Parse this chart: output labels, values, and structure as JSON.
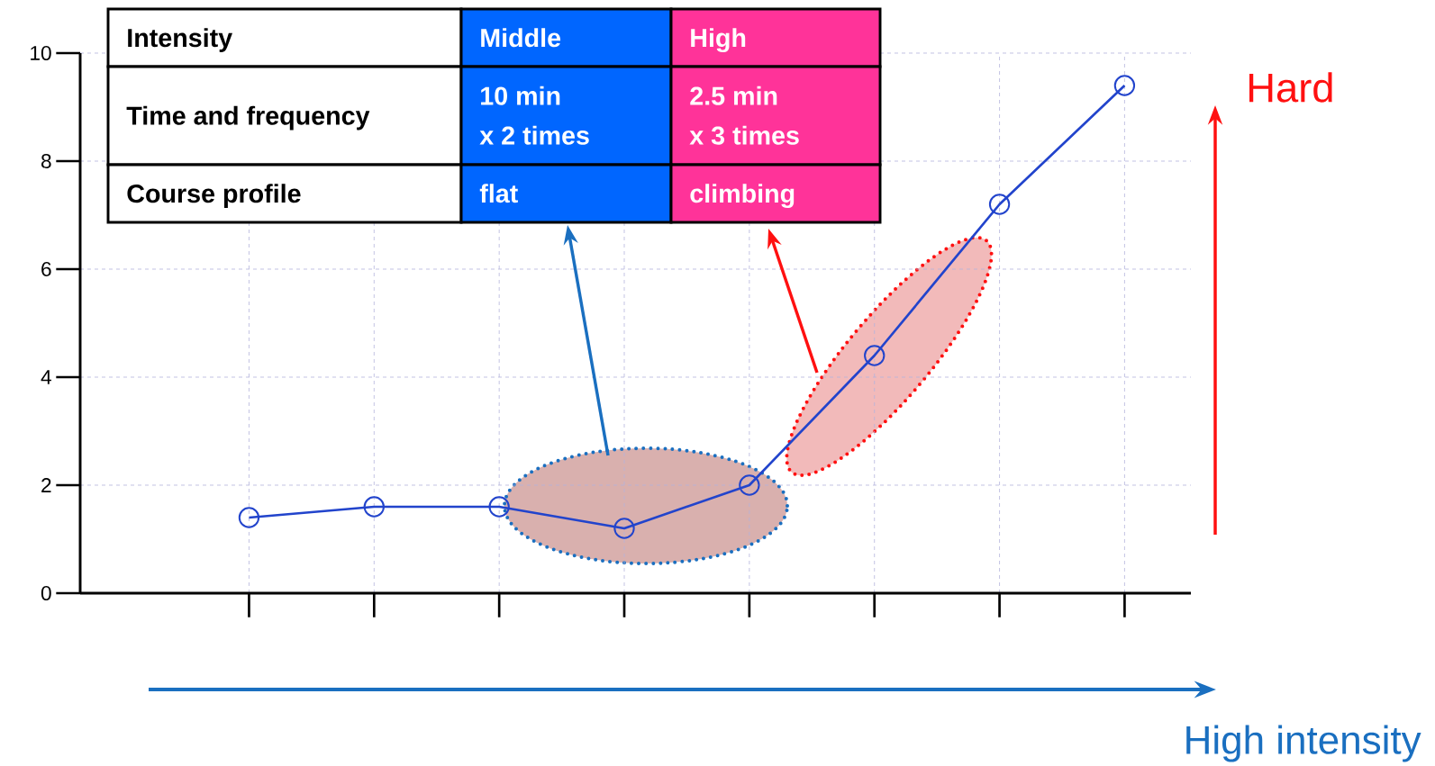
{
  "chart_data": {
    "type": "line",
    "categories": [
      null,
      null,
      null,
      null,
      null,
      null,
      null,
      null
    ],
    "values": [
      1.4,
      1.6,
      1.6,
      1.2,
      2.0,
      4.4,
      7.2,
      9.4
    ],
    "color": "#2244cc",
    "marker": "circle",
    "line_style": "solid",
    "grid": true,
    "ylim": [
      0,
      10
    ],
    "yticks": [
      0,
      2,
      4,
      6,
      8,
      10
    ],
    "annotations": [
      "Intensity",
      "Middle",
      "High",
      "Time and frequency",
      "10 min",
      "x 2 times",
      "2.5 min",
      "x 3 times",
      "Course profile",
      "flat",
      "climbing",
      "Hard",
      "High intensity"
    ]
  }
}
